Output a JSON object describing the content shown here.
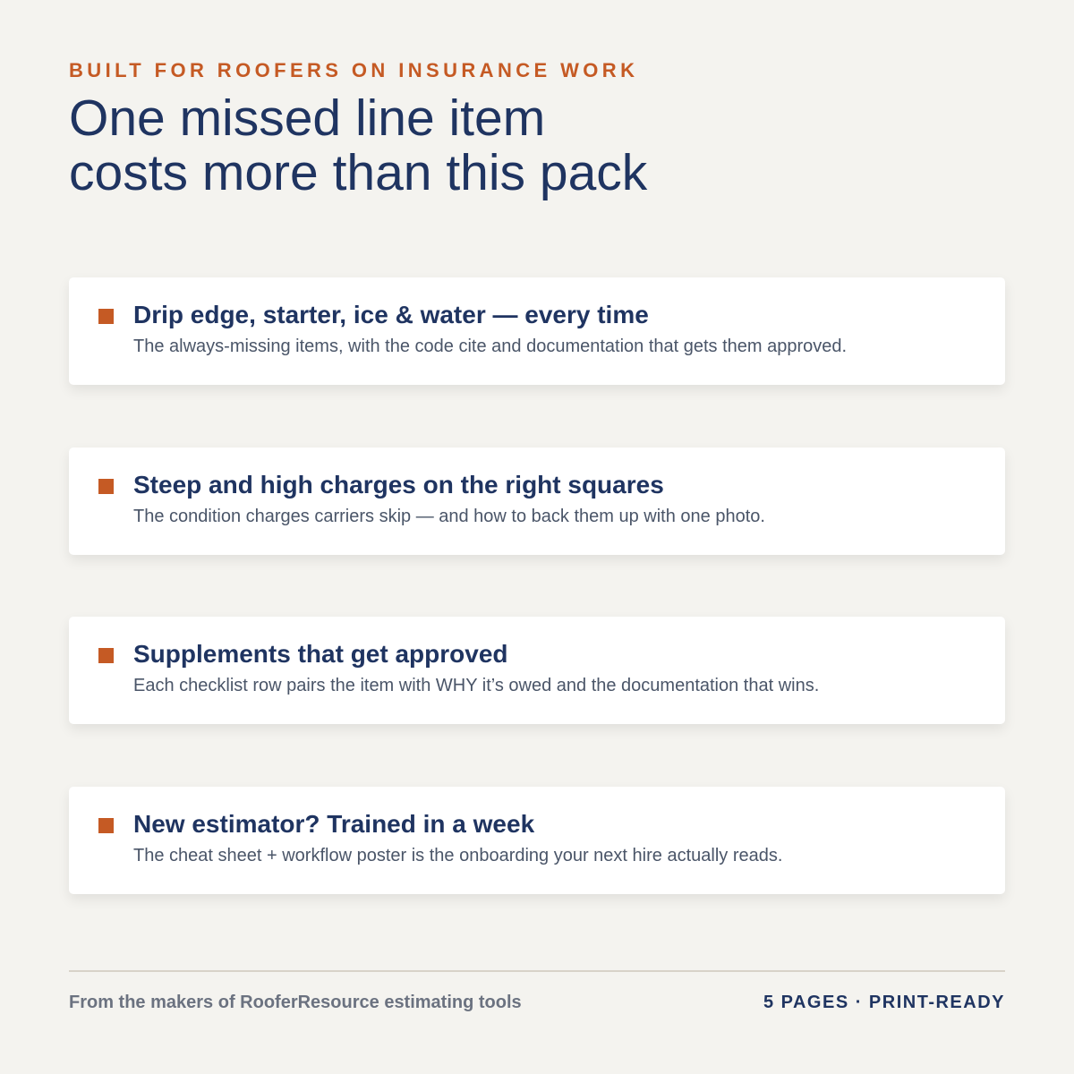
{
  "header": {
    "eyebrow": "BUILT FOR ROOFERS ON INSURANCE WORK",
    "title_lines": [
      "One missed line item",
      "costs more than this pack"
    ]
  },
  "cards": [
    {
      "title": "Drip edge, starter, ice & water — every time",
      "description": "The always-missing items, with the code cite and documentation that gets them approved."
    },
    {
      "title": "Steep and high charges on the right squares",
      "description": "The condition charges carriers skip — and how to back them up with one photo."
    },
    {
      "title": "Supplements that get approved",
      "description": "Each checklist row pairs the item with WHY it’s owed and the documentation that wins."
    },
    {
      "title": "New estimator? Trained in a week",
      "description": "The cheat sheet + workflow poster is the onboarding your next hire actually reads."
    }
  ],
  "footer": {
    "left": "From the makers of RooferResource estimating tools",
    "right": "5 PAGES · PRINT-READY"
  }
}
